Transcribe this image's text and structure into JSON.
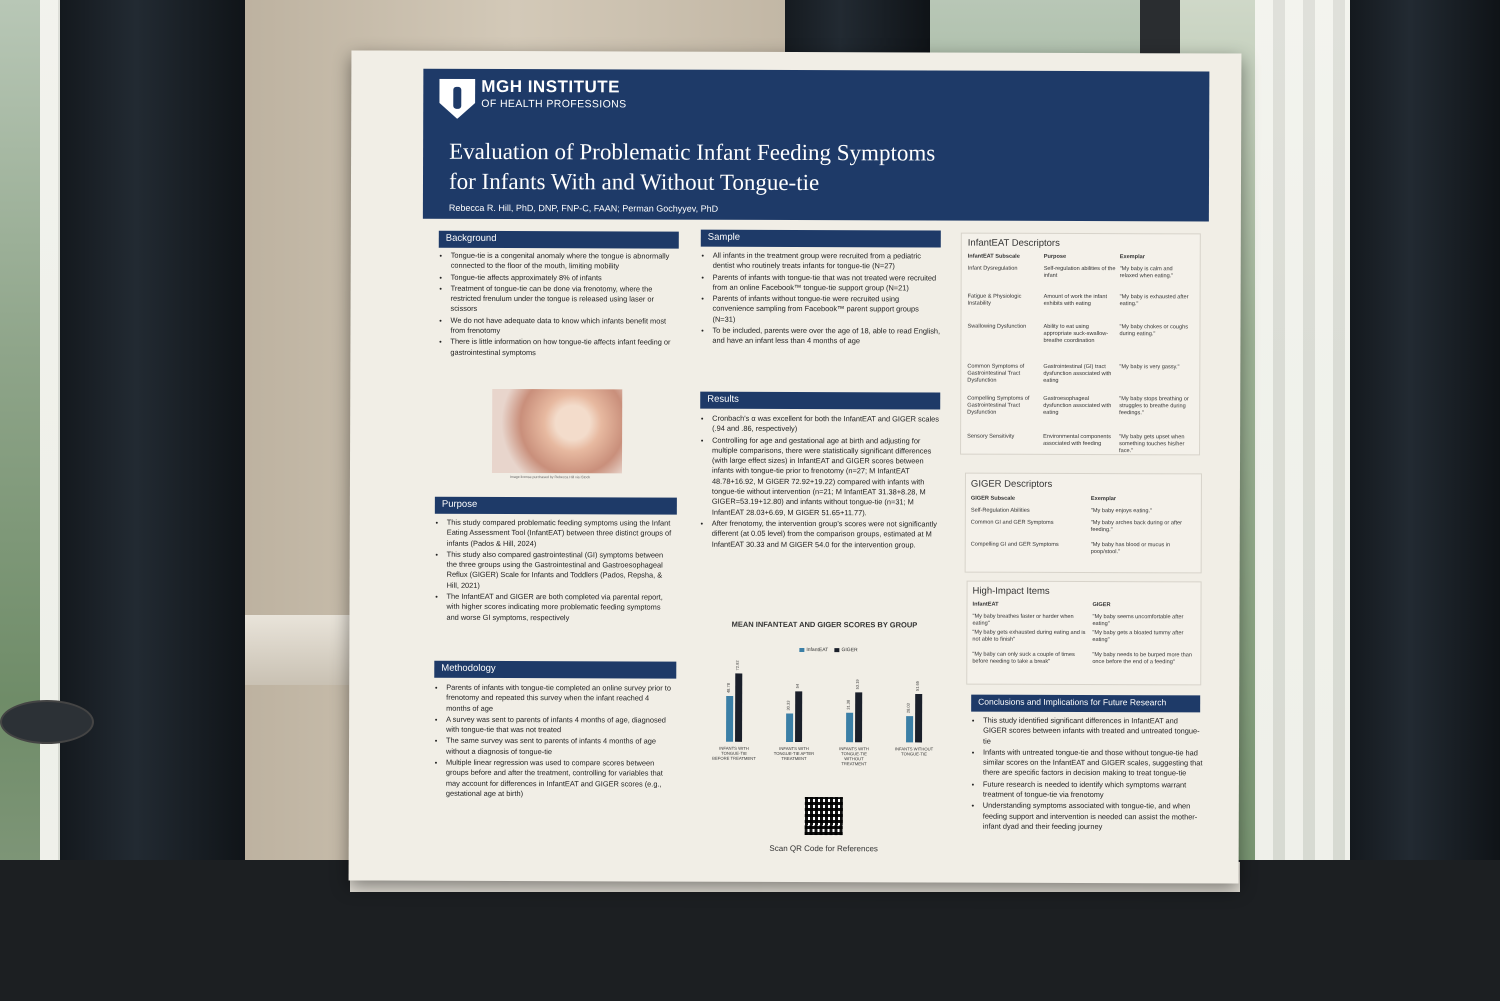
{
  "poster": {
    "institution": "MGH INSTITUTE",
    "institution_sub": "OF HEALTH PROFESSIONS",
    "title_line1": "Evaluation of Problematic Infant Feeding Symptoms",
    "title_line2": "for Infants With and Without Tongue-tie",
    "authors": "Rebecca R. Hill, PhD, DNP, FNP-C, FAAN; Perman Gochyyev, PhD",
    "background": {
      "heading": "Background",
      "items": [
        "Tongue-tie is a congenital anomaly where the tongue is abnormally connected to the floor of the mouth, limiting mobility",
        "Tongue-tie affects approximately 8% of infants",
        "Treatment of tongue-tie can be done via frenotomy, where the restricted frenulum under the tongue is released using laser or scissors",
        "We do not have adequate data to know which infants benefit most from frenotomy",
        "There is little information on how tongue-tie affects infant feeding or gastrointestinal symptoms"
      ],
      "photo_credit": "Image license purchased by Rebecca Hill via iStock"
    },
    "purpose": {
      "heading": "Purpose",
      "items": [
        "This study compared problematic feeding symptoms using the Infant Eating Assessment Tool (InfantEAT) between three distinct groups of infants (Pados & Hill, 2024)",
        "This study also compared gastrointestinal (GI) symptoms between the three groups using the Gastrointestinal and Gastroesophageal Reflux (GIGER) Scale for Infants and Toddlers (Pados, Repsha, & Hill, 2021)",
        "The InfantEAT and GIGER are both completed via parental report, with higher scores indicating more problematic feeding symptoms and worse GI symptoms, respectively"
      ]
    },
    "methodology": {
      "heading": "Methodology",
      "items": [
        "Parents of infants with tongue-tie completed an online survey prior to frenotomy and repeated this survey when the infant reached 4 months of age",
        "A survey was sent to parents of infants 4 months of age, diagnosed with tongue-tie that was not treated",
        "The same survey was sent to parents of infants 4 months of age without a diagnosis of tongue-tie",
        "Multiple linear regression was used to compare scores between groups before and after the treatment, controlling for variables that may account for differences in InfantEAT and GIGER scores (e.g., gestational age at birth)"
      ]
    },
    "sample": {
      "heading": "Sample",
      "items": [
        "All infants in the treatment group were recruited from a pediatric dentist who routinely treats infants for tongue-tie (N=27)",
        "Parents of infants with tongue-tie that was not treated were recruited from an online Facebook™ tongue-tie support group (N=21)",
        "Parents of infants without tongue-tie were recruited using convenience sampling from Facebook™ parent support groups (N=31)",
        "To be included, parents were over the age of 18, able to read English, and have an infant less than 4 months of age"
      ]
    },
    "results": {
      "heading": "Results",
      "items": [
        "Cronbach's α was excellent for both the InfantEAT and GIGER scales (.94 and .86, respectively)",
        "Controlling for age and gestational age at birth and adjusting for multiple comparisons, there were statistically significant differences (with large effect sizes) in InfantEAT and GIGER scores between infants with tongue-tie prior to frenotomy (n=27; M InfantEAT 48.78+16.92, M GIGER 72.92+19.22) compared with infants with tongue-tie without intervention (n=21; M InfantEAT 31.38+8.28, M GIGER=53.19+12.80) and infants without tongue-tie (n=31; M InfantEAT 28.03+6.69, M GIGER 51.65+11.77).",
        "After frenotomy, the intervention group's scores were not significantly different (at 0.05 level) from the comparison groups, estimated at M InfantEAT 30.33 and M GIGER 54.0 for the intervention group."
      ]
    },
    "qr_label": "Scan QR Code for References",
    "infanteat_descriptors": {
      "heading": "InfantEAT Descriptors",
      "columns": [
        "InfantEAT Subscale",
        "Purpose",
        "Exemplar"
      ],
      "rows": [
        [
          "Infant Dysregulation",
          "Self-regulation abilities of the infant",
          "\"My baby is calm and relaxed when eating.\""
        ],
        [
          "Fatigue & Physiologic Instability",
          "Amount of work the infant exhibits with eating",
          "\"My baby is exhausted after eating.\""
        ],
        [
          "Swallowing Dysfunction",
          "Ability to eat using appropriate suck-swallow-breathe coordination",
          "\"My baby chokes or coughs during eating.\""
        ],
        [
          "Common Symptoms of Gastrointestinal Tract Dysfunction",
          "Gastrointestinal (GI) tract dysfunction associated with eating",
          "\"My baby is very gassy.\""
        ],
        [
          "Compelling Symptoms of Gastrointestinal Tract Dysfunction",
          "Gastroesophageal dysfunction associated with eating",
          "\"My baby stops breathing or struggles to breathe during feedings.\""
        ],
        [
          "Sensory Sensitivity",
          "Environmental components associated with feeding",
          "\"My baby gets upset when something touches his/her face.\""
        ]
      ]
    },
    "giger_descriptors": {
      "heading": "GIGER Descriptors",
      "columns": [
        "GIGER Subscale",
        "Exemplar"
      ],
      "rows": [
        [
          "Self-Regulation Abilities",
          "\"My baby enjoys eating.\""
        ],
        [
          "Common GI and GER Symptoms",
          "\"My baby arches back during or after feeding.\""
        ],
        [
          "Compelling GI and GER Symptoms",
          "\"My baby has blood or mucus in poop/stool.\""
        ]
      ]
    },
    "high_impact": {
      "heading": "High-Impact Items",
      "columns": [
        "InfantEAT",
        "GIGER"
      ],
      "rows": [
        [
          "\"My baby breathes faster or harder when eating\"",
          "\"My baby seems uncomfortable after eating\""
        ],
        [
          "\"My baby gets exhausted during eating and is not able to finish\"",
          "\"My baby gets a bloated tummy after eating\""
        ],
        [
          "\"My baby can only suck a couple of times before needing to take a break\"",
          "\"My baby needs to be burped more than once before the end of a feeding\""
        ]
      ]
    },
    "conclusions": {
      "heading": "Conclusions and Implications for Future Research",
      "items": [
        "This study identified significant differences in InfantEAT and GIGER scores between infants with treated and untreated tongue-tie",
        "Infants with untreated tongue-tie and those without tongue-tie had similar scores on the InfantEAT and GIGER scales, suggesting that there are specific factors in decision making to treat tongue-tie",
        "Future research is needed to identify which symptoms warrant treatment of tongue-tie via frenotomy",
        "Understanding symptoms associated with tongue-tie, and when feeding support and intervention is needed can assist the mother-infant dyad and their feeding journey"
      ]
    },
    "colors": {
      "banner": "#1e3a68",
      "infanteat_bar": "#3b7fa6",
      "giger_bar": "#1a1f2a"
    }
  },
  "chart_data": {
    "type": "bar",
    "title": "MEAN INFANTEAT AND GIGER SCORES BY GROUP",
    "categories": [
      "INFANTS WITH TONGUE-TIE BEFORE TREATMENT",
      "INFANTS WITH TONGUE-TIE AFTER TREATMENT",
      "INFANTS WITH TONGUE-TIE WITHOUT TREATMENT",
      "INFANTS WITHOUT TONGUE-TIE"
    ],
    "series": [
      {
        "name": "InfantEAT",
        "values": [
          48.78,
          30.33,
          31.38,
          28.03
        ]
      },
      {
        "name": "GIGER",
        "values": [
          72.92,
          54,
          53.19,
          51.65
        ]
      }
    ],
    "data_labels": [
      [
        "48.78",
        "72.92"
      ],
      [
        "30.33",
        "54"
      ],
      [
        "31.38",
        "53.19"
      ],
      [
        "28.03",
        "51.65"
      ]
    ],
    "ylim": [
      0,
      80
    ],
    "legend_position": "top",
    "grid": false
  }
}
